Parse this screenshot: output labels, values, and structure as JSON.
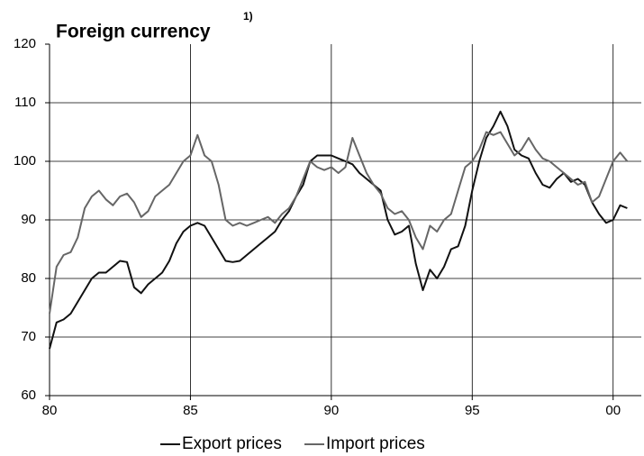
{
  "chart_data": {
    "type": "line",
    "title": "Foreign currency",
    "title_note": "1)",
    "x": [
      80,
      80.25,
      80.5,
      80.75,
      81,
      81.25,
      81.5,
      81.75,
      82,
      82.25,
      82.5,
      82.75,
      83,
      83.25,
      83.5,
      83.75,
      84,
      84.25,
      84.5,
      84.75,
      85,
      85.25,
      85.5,
      85.75,
      86,
      86.25,
      86.5,
      86.75,
      87,
      87.25,
      87.5,
      87.75,
      88,
      88.25,
      88.5,
      88.75,
      89,
      89.25,
      89.5,
      89.75,
      90,
      90.25,
      90.5,
      90.75,
      91,
      91.25,
      91.5,
      91.75,
      92,
      92.25,
      92.5,
      92.75,
      93,
      93.25,
      93.5,
      93.75,
      94,
      94.25,
      94.5,
      94.75,
      95,
      95.25,
      95.5,
      95.75,
      96,
      96.25,
      96.5,
      96.75,
      97,
      97.25,
      97.5,
      97.75,
      98,
      98.25,
      98.5,
      98.75,
      99,
      99.25,
      99.5,
      99.75,
      100,
      100.25,
      100.5
    ],
    "series": [
      {
        "name": "Export prices",
        "color": "#111111",
        "values": [
          68,
          72.5,
          73,
          74,
          76,
          78,
          80,
          81,
          81,
          82,
          83,
          82.8,
          78.5,
          77.5,
          79,
          80,
          81,
          83,
          86,
          88,
          89,
          89.5,
          89,
          87,
          85,
          83,
          82.8,
          83,
          84,
          85,
          86,
          87,
          88,
          90,
          91.5,
          94,
          96,
          100,
          101,
          101,
          101,
          100.5,
          100,
          99.5,
          98,
          97,
          96,
          95,
          90,
          87.5,
          88,
          89,
          82.5,
          78,
          81.5,
          80,
          82,
          85,
          85.5,
          89,
          95,
          100,
          104,
          106,
          108.5,
          106,
          102,
          101,
          100.5,
          98,
          96,
          95.5,
          97,
          98,
          96.5,
          97,
          96,
          93,
          91,
          89.5,
          90,
          92.5,
          92
        ]
      },
      {
        "name": "Import prices",
        "color": "#666666",
        "values": [
          74,
          82,
          84,
          84.5,
          87,
          92,
          94,
          95,
          93.5,
          92.5,
          94,
          94.5,
          93,
          90.5,
          91.5,
          94,
          95,
          96,
          98,
          100,
          101,
          104.5,
          101,
          100,
          96,
          90,
          89,
          89.5,
          89,
          89.5,
          90,
          90.5,
          89.5,
          91,
          92,
          94,
          97,
          100,
          99,
          98.5,
          99,
          98,
          99,
          104,
          101,
          98,
          96,
          94.5,
          92,
          91,
          91.5,
          90,
          87,
          85,
          89,
          88,
          90,
          91,
          95,
          99,
          100,
          102,
          105,
          104.5,
          105,
          103,
          101,
          102,
          104,
          102,
          100.5,
          100,
          99,
          98,
          97,
          96,
          96.5,
          93,
          94,
          97,
          100,
          101.5,
          100
        ]
      }
    ],
    "xlim": [
      80,
      101
    ],
    "xticks": [
      80,
      85,
      90,
      95,
      {
        "value": 100,
        "label": "00"
      }
    ],
    "ylim": [
      60,
      120
    ],
    "yticks": [
      60,
      70,
      80,
      90,
      100,
      110,
      120
    ],
    "grid": true,
    "legend": "bottom"
  }
}
